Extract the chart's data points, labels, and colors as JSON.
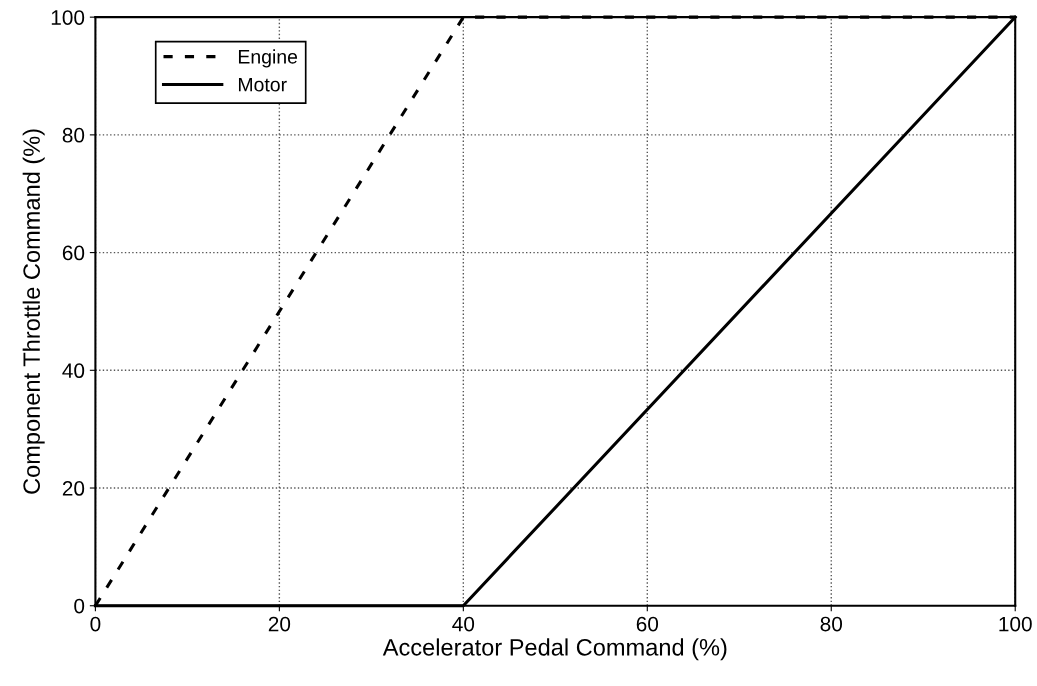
{
  "chart_data": {
    "type": "line",
    "xlabel": "Accelerator Pedal Command (%)",
    "ylabel": "Component Throttle Command (%)",
    "xlim": [
      0,
      100
    ],
    "ylim": [
      0,
      100
    ],
    "xticks": [
      0,
      20,
      40,
      60,
      80,
      100
    ],
    "yticks": [
      0,
      20,
      40,
      60,
      80,
      100
    ],
    "grid": true,
    "legend": "top left",
    "marker": "none",
    "series": [
      {
        "name": "Engine",
        "color": "#000000",
        "line_style": "dashed",
        "x": [
          0,
          40,
          100
        ],
        "values": [
          0,
          100,
          100
        ]
      },
      {
        "name": "Motor",
        "color": "#000000",
        "line_style": "solid",
        "x": [
          0,
          40,
          100
        ],
        "values": [
          0,
          0,
          100
        ]
      }
    ]
  }
}
